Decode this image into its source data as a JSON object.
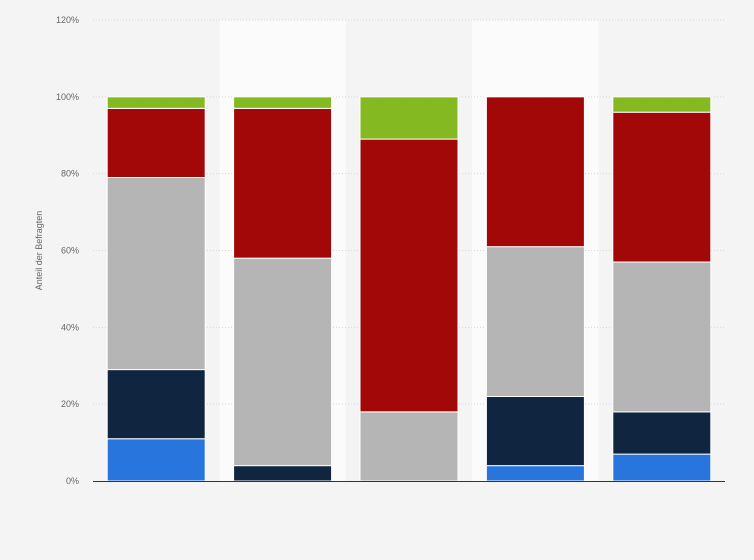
{
  "chart_data": {
    "type": "bar",
    "stacked": true,
    "title": "",
    "xlabel": "",
    "ylabel": "Anteil der Befragten",
    "ylim": [
      0,
      120
    ],
    "yticks": [
      0,
      20,
      40,
      60,
      80,
      100,
      120
    ],
    "ytick_suffix": "%",
    "grid": true,
    "legend": "none",
    "categories": [
      "",
      "",
      "",
      "",
      ""
    ],
    "series": [
      {
        "color": "#2875de",
        "values": [
          11,
          0,
          0,
          4,
          7
        ]
      },
      {
        "color": "#0f2540",
        "values": [
          18,
          4,
          0,
          18,
          11
        ]
      },
      {
        "color": "#b5b5b5",
        "values": [
          50,
          54,
          18,
          39,
          39
        ]
      },
      {
        "color": "#a20808",
        "values": [
          18,
          39,
          71,
          39,
          39
        ]
      },
      {
        "color": "#84b922",
        "values": [
          3,
          3,
          11,
          0,
          4
        ]
      }
    ],
    "background_bands": [
      1,
      3
    ]
  }
}
